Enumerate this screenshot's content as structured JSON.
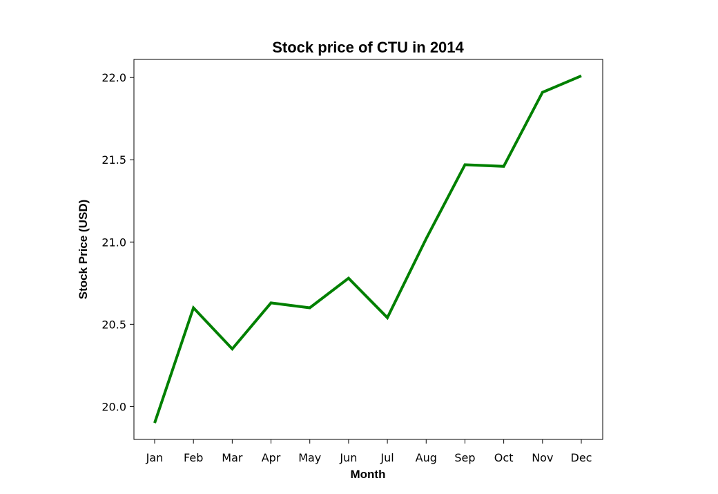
{
  "chart_data": {
    "type": "line",
    "title": "Stock price of CTU in 2014",
    "xlabel": "Month",
    "ylabel": "Stock Price (USD)",
    "categories": [
      "Jan",
      "Feb",
      "Mar",
      "Apr",
      "May",
      "Jun",
      "Jul",
      "Aug",
      "Sep",
      "Oct",
      "Nov",
      "Dec"
    ],
    "series": [
      {
        "values": [
          19.9,
          20.6,
          20.35,
          20.63,
          20.6,
          20.78,
          20.54,
          21.02,
          21.47,
          21.46,
          21.91,
          22.01
        ],
        "color": "#008000"
      }
    ],
    "ylim": [
      19.8,
      22.11
    ],
    "yticks": [
      20.0,
      20.5,
      21.0,
      21.5,
      22.0
    ],
    "ytick_labels": [
      "20.0",
      "20.5",
      "21.0",
      "21.5",
      "22.0"
    ],
    "grid": false,
    "legend": "none"
  }
}
